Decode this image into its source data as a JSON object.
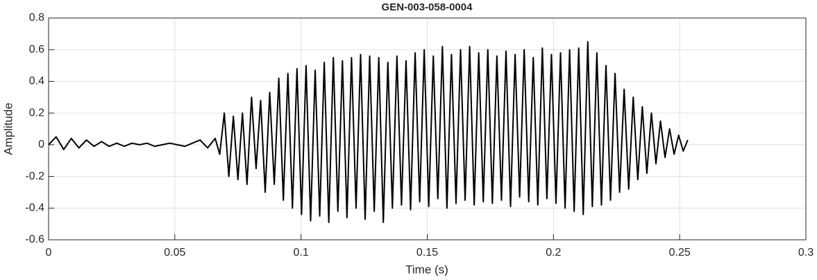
{
  "chart_data": {
    "type": "line",
    "title": "GEN-003-058-0004",
    "x_label": "Time (s)",
    "y_label": "Amplitude",
    "color": "#000000",
    "grid": true,
    "xlim": [
      0,
      0.3
    ],
    "xticks": [
      0,
      0.05,
      0.1,
      0.15,
      0.2,
      0.25,
      0.3
    ],
    "ylim": [
      -0.6,
      0.8
    ],
    "yticks": [
      -0.6,
      -0.4,
      -0.2,
      0,
      0.2,
      0.4,
      0.6,
      0.8
    ],
    "x": [
      0,
      0.003,
      0.006,
      0.009,
      0.012,
      0.015,
      0.018,
      0.021,
      0.024,
      0.027,
      0.03,
      0.033,
      0.036,
      0.039,
      0.042,
      0.045,
      0.048,
      0.051,
      0.054,
      0.057,
      0.06,
      0.063,
      0.066,
      0.0678,
      0.0696,
      0.0714,
      0.0732,
      0.075,
      0.0768,
      0.0786,
      0.0804,
      0.0822,
      0.084,
      0.0858,
      0.0876,
      0.0894,
      0.0912,
      0.093,
      0.0948,
      0.0966,
      0.0984,
      0.1002,
      0.102,
      0.1038,
      0.1056,
      0.1074,
      0.1092,
      0.111,
      0.1128,
      0.1146,
      0.1164,
      0.1182,
      0.12,
      0.1218,
      0.1236,
      0.1254,
      0.1272,
      0.129,
      0.1308,
      0.1326,
      0.1344,
      0.1362,
      0.138,
      0.1398,
      0.1416,
      0.1434,
      0.1452,
      0.147,
      0.1488,
      0.1506,
      0.1524,
      0.1542,
      0.156,
      0.1578,
      0.1596,
      0.1614,
      0.1632,
      0.165,
      0.1668,
      0.1686,
      0.1704,
      0.1722,
      0.174,
      0.1758,
      0.1776,
      0.1794,
      0.1812,
      0.183,
      0.1848,
      0.1866,
      0.1884,
      0.1902,
      0.192,
      0.1938,
      0.1956,
      0.1974,
      0.1992,
      0.201,
      0.2028,
      0.2046,
      0.2064,
      0.2082,
      0.21,
      0.2118,
      0.2136,
      0.2154,
      0.2172,
      0.219,
      0.2208,
      0.2226,
      0.2244,
      0.2262,
      0.228,
      0.2298,
      0.2316,
      0.2334,
      0.2352,
      0.237,
      0.2388,
      0.2406,
      0.2424,
      0.2442,
      0.246,
      0.2478,
      0.2496,
      0.2514,
      0.2532
    ],
    "values": [
      0,
      0.05,
      -0.03,
      0.04,
      -0.02,
      0.03,
      -0.01,
      0.02,
      -0.01,
      0.01,
      -0.01,
      0.01,
      0,
      0.01,
      -0.01,
      0,
      0.01,
      0,
      -0.01,
      0.01,
      0.03,
      -0.02,
      0.04,
      -0.06,
      0.2,
      -0.2,
      0.18,
      -0.22,
      0.2,
      -0.25,
      0.3,
      -0.15,
      0.28,
      -0.3,
      0.33,
      -0.25,
      0.42,
      -0.35,
      0.45,
      -0.4,
      0.48,
      -0.44,
      0.5,
      -0.48,
      0.47,
      -0.45,
      0.52,
      -0.49,
      0.55,
      -0.42,
      0.53,
      -0.46,
      0.55,
      -0.4,
      0.57,
      -0.47,
      0.56,
      -0.42,
      0.55,
      -0.49,
      0.52,
      -0.4,
      0.56,
      -0.38,
      0.53,
      -0.41,
      0.58,
      -0.36,
      0.6,
      -0.39,
      0.56,
      -0.34,
      0.62,
      -0.4,
      0.57,
      -0.37,
      0.6,
      -0.35,
      0.62,
      -0.38,
      0.58,
      -0.36,
      0.6,
      -0.37,
      0.56,
      -0.35,
      0.59,
      -0.39,
      0.57,
      -0.33,
      0.6,
      -0.36,
      0.55,
      -0.38,
      0.61,
      -0.34,
      0.57,
      -0.37,
      0.58,
      -0.4,
      0.6,
      -0.42,
      0.61,
      -0.44,
      0.65,
      -0.39,
      0.58,
      -0.38,
      0.5,
      -0.35,
      0.45,
      -0.3,
      0.35,
      -0.28,
      0.3,
      -0.22,
      0.24,
      -0.18,
      0.2,
      -0.12,
      0.15,
      -0.08,
      0.1,
      -0.06,
      0.06,
      -0.04,
      0.03
    ]
  }
}
